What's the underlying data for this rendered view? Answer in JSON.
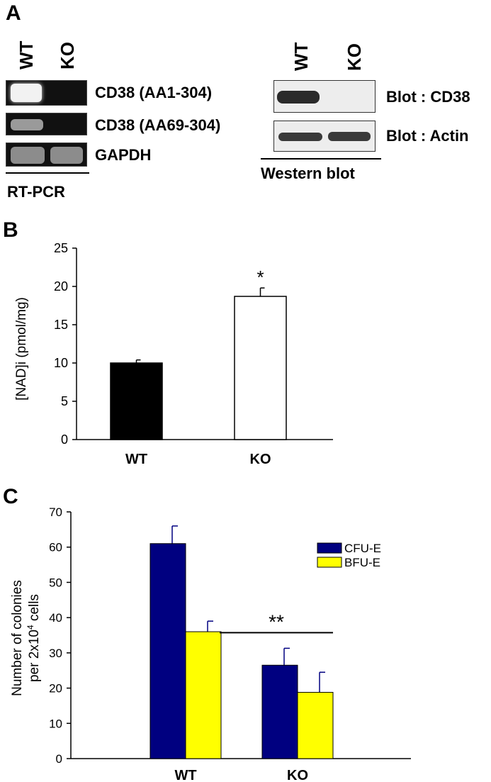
{
  "panel_a": {
    "letter": "A",
    "rtpcr": {
      "lane_labels": [
        "WT",
        "KO"
      ],
      "rows": [
        "CD38 (AA1-304)",
        "CD38 (AA69-304)",
        "GAPDH"
      ],
      "caption": "RT-PCR"
    },
    "western": {
      "lane_labels": [
        "WT",
        "KO"
      ],
      "rows": [
        "Blot : CD38",
        "Blot : Actin"
      ],
      "caption": "Western blot"
    }
  },
  "panel_b": {
    "letter": "B",
    "chart_data": {
      "type": "bar",
      "categories": [
        "WT",
        "KO"
      ],
      "values": [
        10.0,
        18.7
      ],
      "errors": [
        0.4,
        1.1
      ],
      "bar_colors": [
        "#000000",
        "#ffffff"
      ],
      "ylabel": "[NAD]i (pmol/mg)",
      "ylim": [
        0,
        25
      ],
      "yticks": [
        0,
        5,
        10,
        15,
        20,
        25
      ],
      "annotations": [
        {
          "category": "KO",
          "text": "*"
        }
      ],
      "grid": false
    }
  },
  "panel_c": {
    "letter": "C",
    "chart_data": {
      "type": "bar",
      "categories": [
        "WT",
        "KO"
      ],
      "series": [
        {
          "name": "CFU-E",
          "values": [
            61,
            26.5
          ],
          "errors": [
            5,
            4.8
          ],
          "color": "#000080"
        },
        {
          "name": "BFU-E",
          "values": [
            36,
            18.8
          ],
          "errors": [
            3,
            5.7
          ],
          "color": "#ffff00"
        }
      ],
      "ylabel_line1": "Number of colonies",
      "ylabel_line2": "per 2x10",
      "ylabel_sup": "4",
      "ylabel_tail": " cells",
      "ylim": [
        0,
        70
      ],
      "yticks": [
        0,
        10,
        20,
        30,
        40,
        50,
        60,
        70
      ],
      "legend_position": "top-right",
      "annotations": [
        {
          "category": "KO",
          "text": "**"
        }
      ],
      "grid": false
    }
  }
}
